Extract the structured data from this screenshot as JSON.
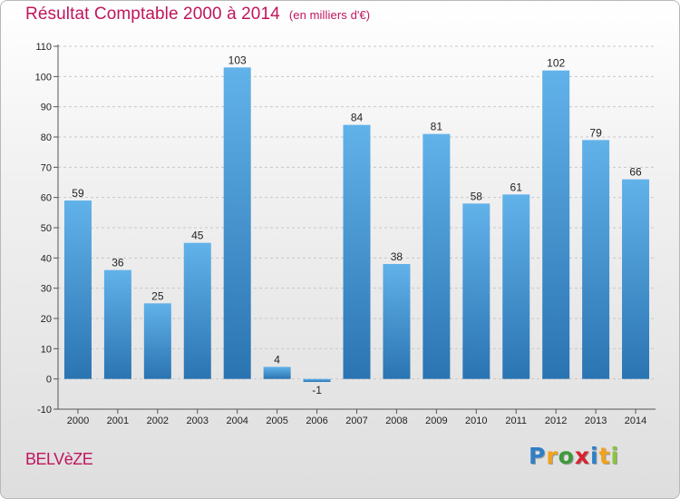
{
  "title": {
    "main": "Résultat Comptable 2000 à 2014",
    "unit": "(en milliers d'€)"
  },
  "commune": "BELVèZE",
  "brand": {
    "letters": [
      "P",
      "r",
      "o",
      "x",
      "i",
      "t",
      "i"
    ],
    "colors": [
      "#2e7fc7",
      "#f2a21b",
      "#3c9a3a",
      "#d8222f",
      "#2e7fc7",
      "#f2a21b",
      "#8bc43f"
    ]
  },
  "colors": {
    "bar_top": "#62b2ea",
    "bar_bottom": "#2a74b2",
    "axis": "#555555",
    "grid": "#c8c8c8",
    "title": "#c0155e"
  },
  "chart_data": {
    "type": "bar",
    "categories": [
      "2000",
      "2001",
      "2002",
      "2003",
      "2004",
      "2005",
      "2006",
      "2007",
      "2008",
      "2009",
      "2010",
      "2011",
      "2012",
      "2013",
      "2014"
    ],
    "values": [
      59,
      36,
      25,
      45,
      103,
      4,
      -1,
      84,
      38,
      81,
      58,
      61,
      102,
      79,
      66
    ],
    "value_labels": [
      "59",
      "36",
      "25",
      "45",
      "103",
      "4",
      "-1",
      "84",
      "38",
      "81",
      "58",
      "61",
      "102",
      "79",
      "66"
    ],
    "title": "Résultat Comptable 2000 à 2014",
    "ylim": [
      -10,
      110
    ],
    "yticks": [
      -10,
      0,
      10,
      20,
      30,
      40,
      50,
      60,
      70,
      80,
      90,
      100,
      110
    ],
    "grid": true,
    "xlabel": "",
    "ylabel": ""
  }
}
